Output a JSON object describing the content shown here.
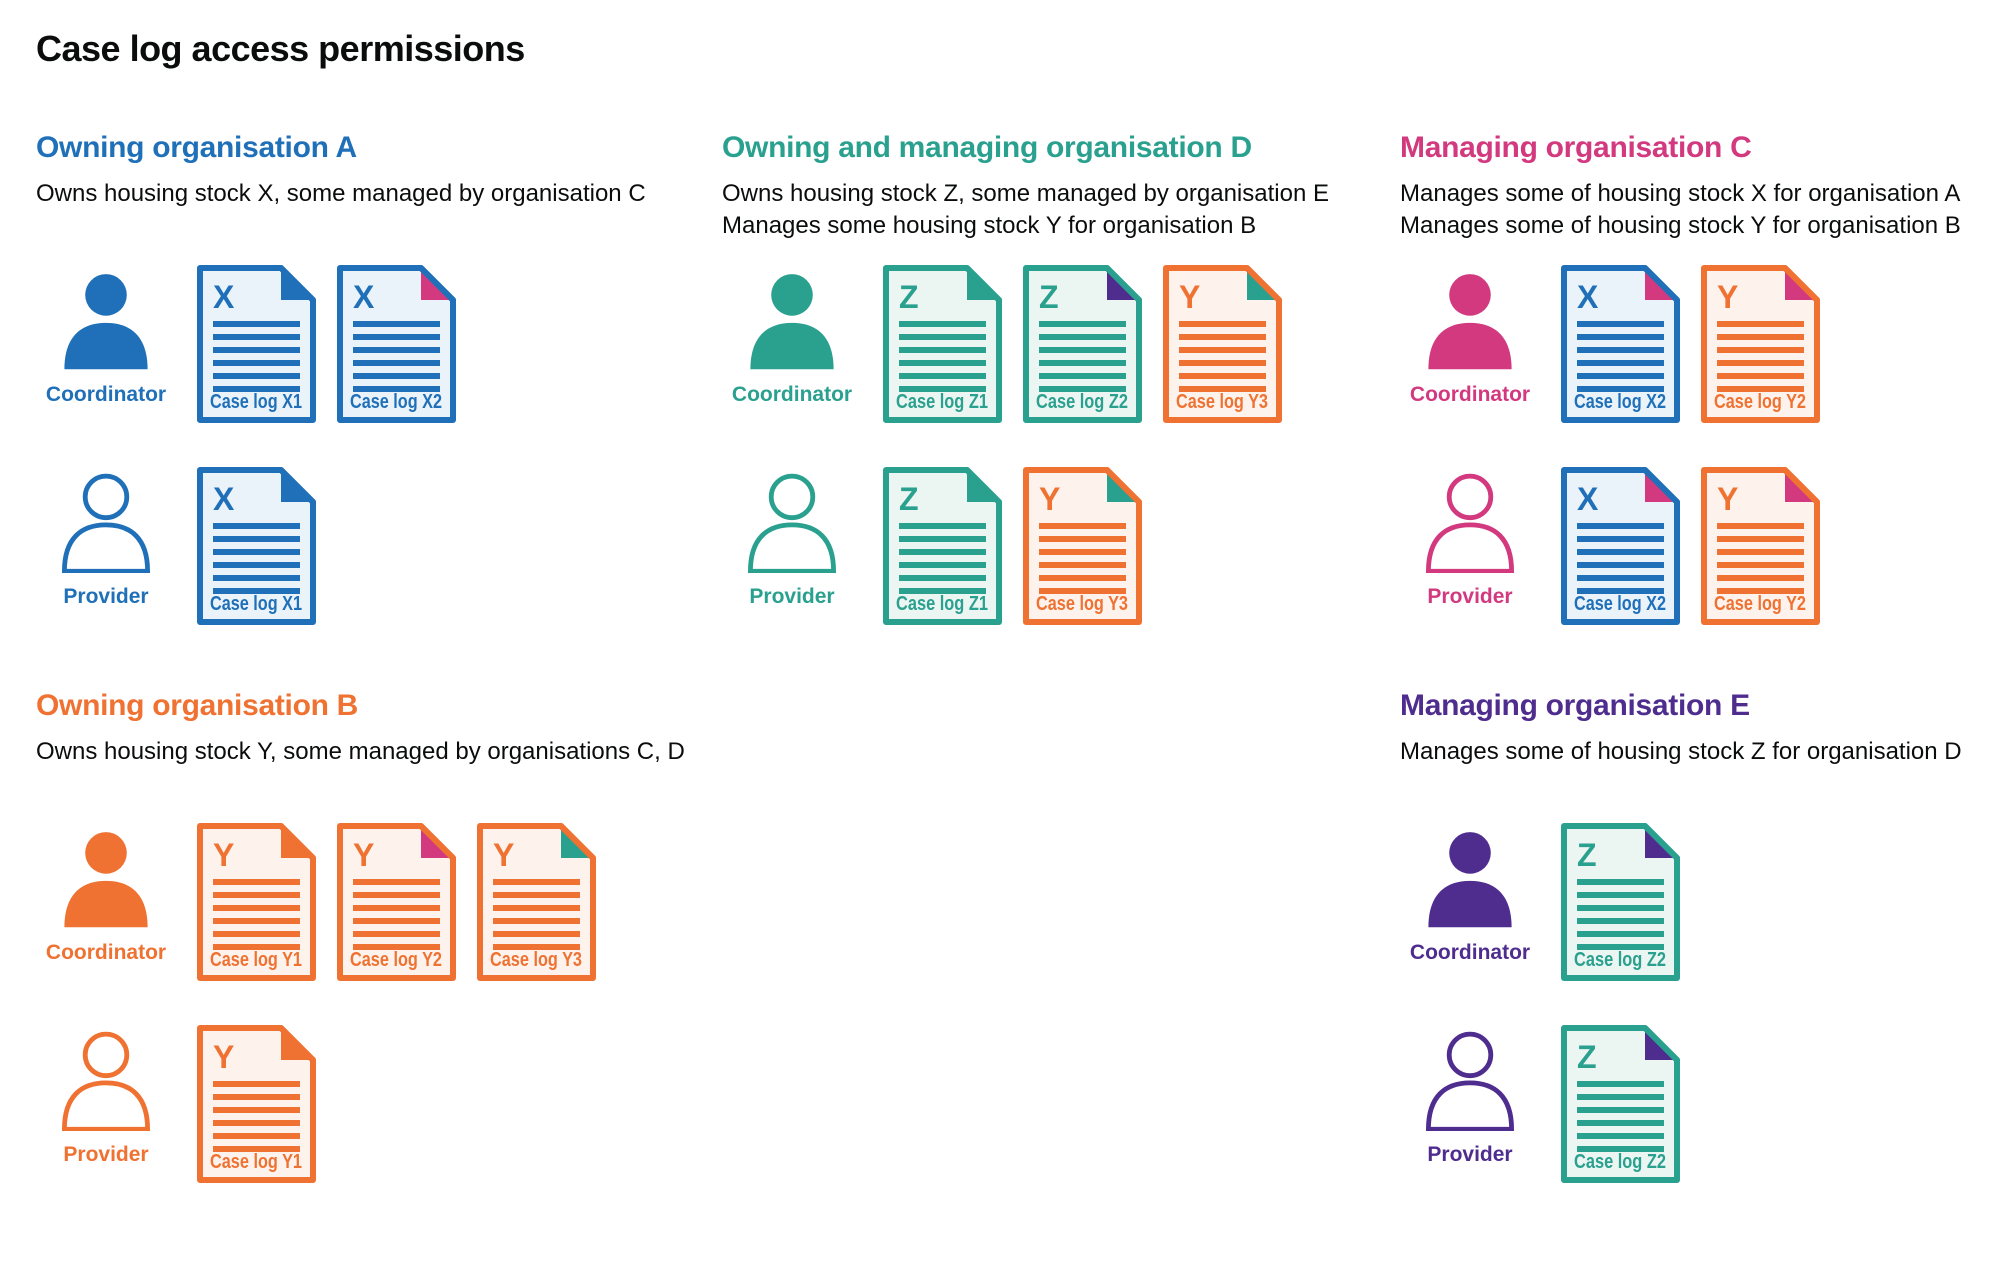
{
  "title": "Case log access permissions",
  "colors": {
    "blue": "#1f70b8",
    "blue_fill": "#eaf2fa",
    "orange": "#ef7232",
    "orange_fill": "#fdf3ec",
    "teal": "#2aa08e",
    "teal_fill": "#ebf5f2",
    "pink": "#d2397e",
    "purple": "#4f2d8f",
    "text": "#0b0c0c"
  },
  "roles": {
    "coordinator": "Coordinator",
    "provider": "Provider"
  },
  "columns": [
    [
      {
        "id": "org-a",
        "heading": "Owning organisation A",
        "color": "blue",
        "description_lines": [
          "Owns housing stock X, some managed by organisation C"
        ],
        "rows": [
          {
            "role": "coordinator",
            "person_style": "filled",
            "docs": [
              {
                "letter": "X",
                "label": "Case log X1",
                "color": "blue",
                "fold": "blue"
              },
              {
                "letter": "X",
                "label": "Case log X2",
                "color": "blue",
                "fold": "pink"
              }
            ]
          },
          {
            "role": "provider",
            "person_style": "outline",
            "docs": [
              {
                "letter": "X",
                "label": "Case log X1",
                "color": "blue",
                "fold": "blue"
              }
            ]
          }
        ]
      },
      {
        "id": "org-b",
        "heading": "Owning organisation B",
        "color": "orange",
        "description_lines": [
          "Owns housing stock Y, some managed by organisations C, D"
        ],
        "rows": [
          {
            "role": "coordinator",
            "person_style": "filled",
            "docs": [
              {
                "letter": "Y",
                "label": "Case log Y1",
                "color": "orange",
                "fold": "orange"
              },
              {
                "letter": "Y",
                "label": "Case log Y2",
                "color": "orange",
                "fold": "pink"
              },
              {
                "letter": "Y",
                "label": "Case log Y3",
                "color": "orange",
                "fold": "teal"
              }
            ]
          },
          {
            "role": "provider",
            "person_style": "outline",
            "docs": [
              {
                "letter": "Y",
                "label": "Case log Y1",
                "color": "orange",
                "fold": "orange"
              }
            ]
          }
        ]
      }
    ],
    [
      {
        "id": "org-d",
        "heading": "Owning and managing organisation D",
        "color": "teal",
        "description_lines": [
          "Owns housing stock Z, some managed by organisation E",
          "Manages some housing stock Y for organisation B"
        ],
        "rows": [
          {
            "role": "coordinator",
            "person_style": "filled",
            "docs": [
              {
                "letter": "Z",
                "label": "Case log Z1",
                "color": "teal",
                "fold": "teal"
              },
              {
                "letter": "Z",
                "label": "Case log Z2",
                "color": "teal",
                "fold": "purple"
              },
              {
                "letter": "Y",
                "label": "Case log Y3",
                "color": "orange",
                "fold": "teal"
              }
            ]
          },
          {
            "role": "provider",
            "person_style": "outline",
            "docs": [
              {
                "letter": "Z",
                "label": "Case log Z1",
                "color": "teal",
                "fold": "teal"
              },
              {
                "letter": "Y",
                "label": "Case log Y3",
                "color": "orange",
                "fold": "teal"
              }
            ]
          }
        ]
      }
    ],
    [
      {
        "id": "org-c",
        "heading": "Managing organisation C",
        "color": "pink",
        "description_lines": [
          "Manages some of housing stock X for organisation A",
          "Manages some of housing stock Y for organisation B"
        ],
        "rows": [
          {
            "role": "coordinator",
            "person_style": "filled",
            "docs": [
              {
                "letter": "X",
                "label": "Case log X2",
                "color": "blue",
                "fold": "pink"
              },
              {
                "letter": "Y",
                "label": "Case log Y2",
                "color": "orange",
                "fold": "pink"
              }
            ]
          },
          {
            "role": "provider",
            "person_style": "outline",
            "docs": [
              {
                "letter": "X",
                "label": "Case log X2",
                "color": "blue",
                "fold": "pink"
              },
              {
                "letter": "Y",
                "label": "Case log Y2",
                "color": "orange",
                "fold": "pink"
              }
            ]
          }
        ]
      },
      {
        "id": "org-e",
        "heading": "Managing organisation E",
        "color": "purple",
        "description_lines": [
          "Manages some of housing stock Z for organisation D"
        ],
        "rows": [
          {
            "role": "coordinator",
            "person_style": "filled",
            "docs": [
              {
                "letter": "Z",
                "label": "Case log Z2",
                "color": "teal",
                "fold": "purple"
              }
            ]
          },
          {
            "role": "provider",
            "person_style": "outline",
            "docs": [
              {
                "letter": "Z",
                "label": "Case log Z2",
                "color": "teal",
                "fold": "purple"
              }
            ]
          }
        ]
      }
    ]
  ]
}
